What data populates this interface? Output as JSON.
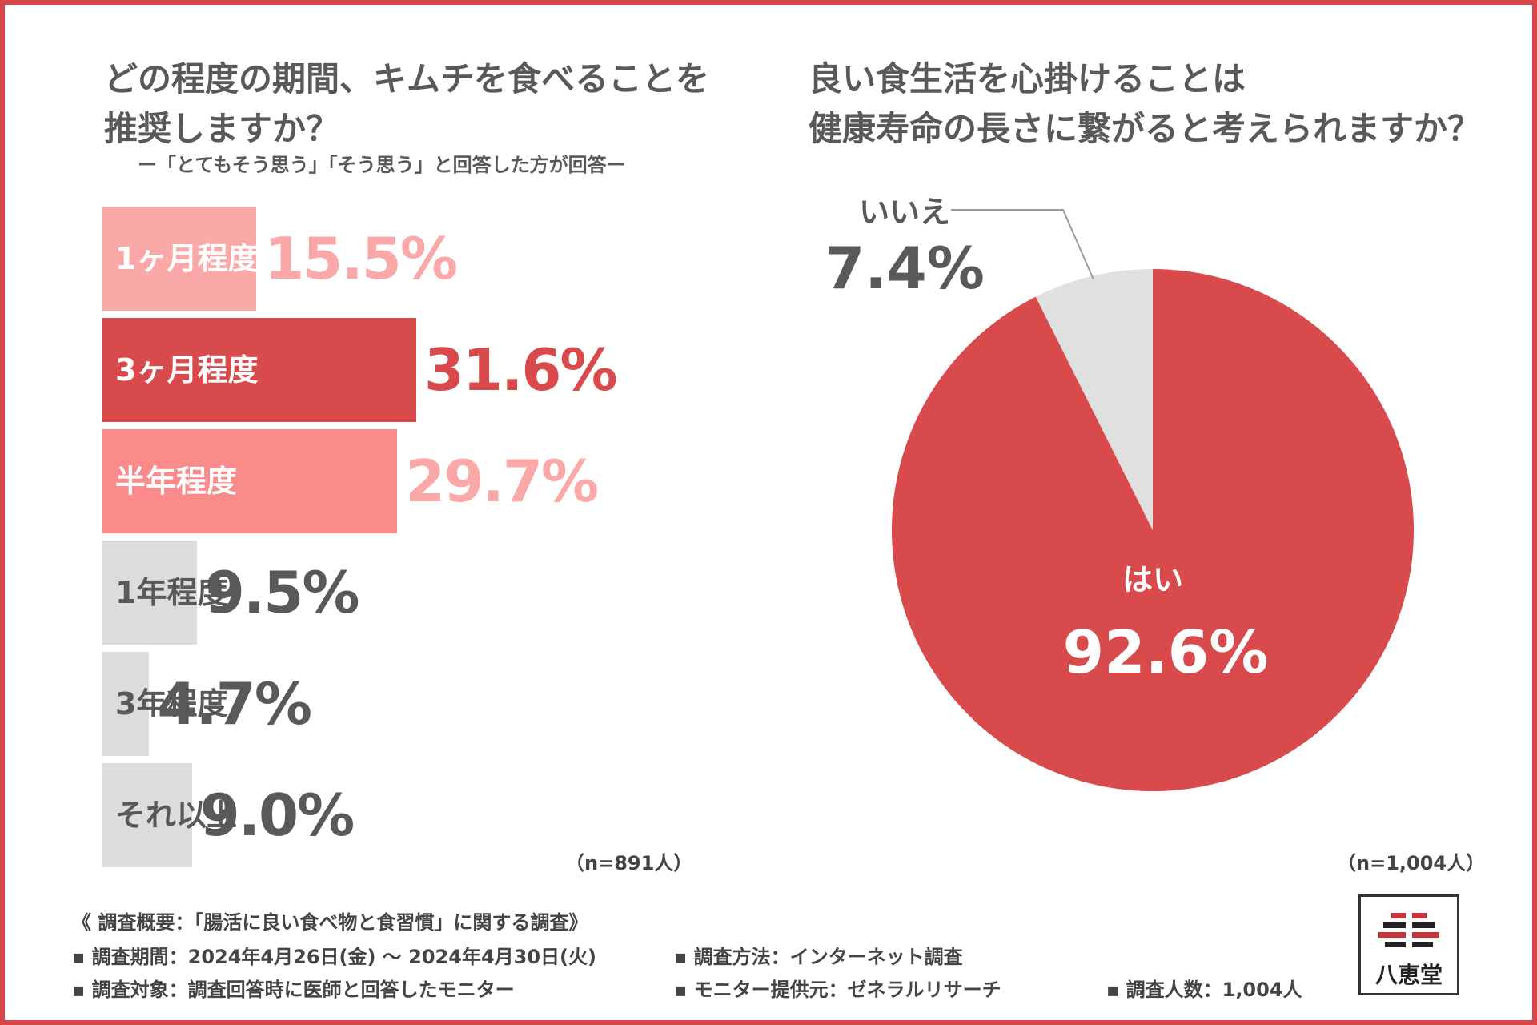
{
  "colors": {
    "frame": "#d9474b",
    "red": "#d94a4c",
    "pink_light": "#fba8a9",
    "pink": "#fb8a8b",
    "gray_bar": "#dcdcdc",
    "text_dark": "#595959",
    "pie_no": "#e0e0e0"
  },
  "left": {
    "title_line1": "どの程度の期間、キムチを食べることを",
    "title_line2": "推奨しますか？",
    "subtitle": "ー「とてもそう思う」「そう思う」と回答した方が回答ー",
    "n_label": "（n=891人）"
  },
  "right": {
    "title_line1": "良い食生活を心掛けることは",
    "title_line2": "健康寿命の長さに繋がると考えられますか？",
    "n_label": "（n=1,004人）"
  },
  "chart_data": [
    {
      "type": "bar",
      "orientation": "horizontal",
      "title": "どの程度の期間、キムチを食べることを推奨しますか？",
      "subtitle": "ー「とてもそう思う」「そう思う」と回答した方が回答ー",
      "categories": [
        "1ヶ月程度",
        "3ヶ月程度",
        "半年程度",
        "1年程度",
        "3年程度",
        "それ以上"
      ],
      "values": [
        15.5,
        31.6,
        29.7,
        9.5,
        4.7,
        9.0
      ],
      "value_labels": [
        "15.5%",
        "31.6%",
        "29.7%",
        "9.5%",
        "4.7%",
        "9.0%"
      ],
      "unit": "%",
      "xlim": [
        0,
        100
      ],
      "n": "（n=891人）"
    },
    {
      "type": "pie",
      "title": "良い食生活を心掛けることは健康寿命の長さに繋がると考えられますか？",
      "slices": [
        {
          "label": "はい",
          "value": 92.6,
          "value_label": "92.6%"
        },
        {
          "label": "いいえ",
          "value": 7.4,
          "value_label": "7.4%"
        }
      ],
      "n": "（n=1,004人）"
    }
  ],
  "footer": {
    "overview": "《 調査概要：「腸活に良い食べ物と食習慣」に関する調査》",
    "period": "▪ 調査期間：2024年4月26日(金) 〜 2024年4月30日(火)",
    "method": "▪ 調査方法：インターネット調査",
    "target": "▪ 調査対象：調査回答時に医師と回答したモニター",
    "provider": "▪ モニター提供元：ゼネラルリサーチ",
    "count": "▪ 調査人数：1,004人"
  },
  "logo": {
    "text": "八恵堂"
  }
}
